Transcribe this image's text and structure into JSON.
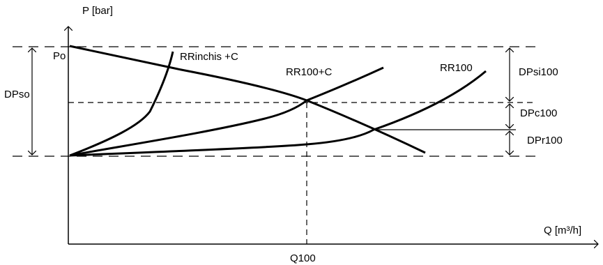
{
  "axes": {
    "y_label": "P [bar]",
    "x_label": "Q [m³/h]"
  },
  "labels": {
    "po": "Po",
    "dpso": "DPso",
    "rrinchis": "RRinchis +C",
    "rr100c": "RR100+C",
    "rr100": "RR100",
    "dpsi100": "DPsi100",
    "dpc100": "DPc100",
    "dpr100": "DPr100",
    "q100": "Q100"
  },
  "colors": {
    "stroke": "#000000",
    "background": "#ffffff"
  }
}
